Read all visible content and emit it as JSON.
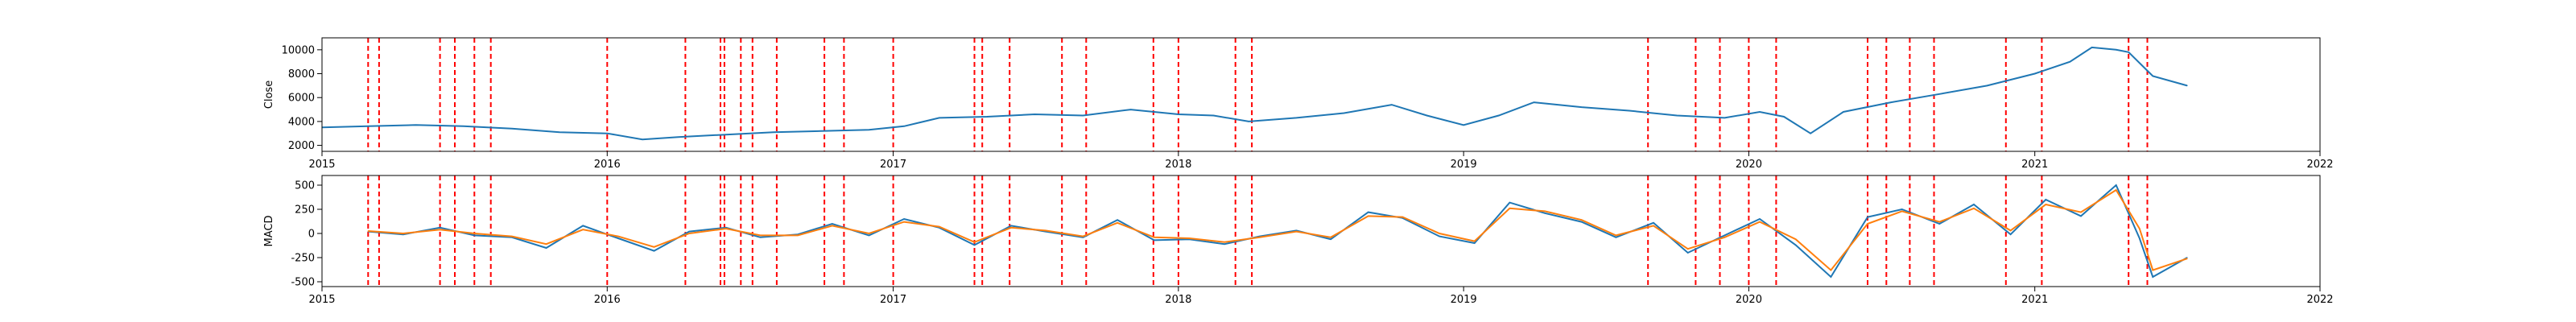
{
  "chart_data": [
    {
      "type": "line",
      "ylabel": "Close",
      "xlabel": "",
      "title": "",
      "xlim": [
        "2015-01-01",
        "2022-01-01"
      ],
      "ylim": [
        1500,
        11000
      ],
      "x_ticks": [
        "2015",
        "2016",
        "2017",
        "2018",
        "2019",
        "2020",
        "2021",
        "2022"
      ],
      "y_ticks": [
        2000,
        4000,
        6000,
        8000,
        10000
      ],
      "grid": false,
      "series": [
        {
          "color": "#1f77b4",
          "x": [
            "2015-01-01",
            "2015-03-01",
            "2015-05-01",
            "2015-07-01",
            "2015-09-01",
            "2015-11-01",
            "2016-01-01",
            "2016-02-15",
            "2016-04-01",
            "2016-06-01",
            "2016-08-01",
            "2016-10-01",
            "2016-12-01",
            "2017-01-15",
            "2017-03-01",
            "2017-05-01",
            "2017-07-01",
            "2017-09-01",
            "2017-11-01",
            "2018-01-01",
            "2018-02-15",
            "2018-04-01",
            "2018-06-01",
            "2018-08-01",
            "2018-10-01",
            "2018-11-15",
            "2019-01-01",
            "2019-02-15",
            "2019-04-01",
            "2019-06-01",
            "2019-08-01",
            "2019-10-01",
            "2019-12-01",
            "2020-01-15",
            "2020-02-15",
            "2020-03-20",
            "2020-05-01",
            "2020-07-01",
            "2020-09-01",
            "2020-11-01",
            "2021-01-01",
            "2021-02-15",
            "2021-03-15",
            "2021-04-15",
            "2021-05-01",
            "2021-06-01",
            "2021-07-15"
          ],
          "y": [
            3500,
            3600,
            3700,
            3600,
            3400,
            3100,
            3000,
            2500,
            2700,
            2900,
            3100,
            3200,
            3300,
            3600,
            4300,
            4400,
            4600,
            4500,
            5000,
            4600,
            4500,
            4000,
            4300,
            4700,
            5400,
            4500,
            3700,
            4500,
            5600,
            5200,
            4900,
            4500,
            4300,
            4800,
            4400,
            3000,
            4800,
            5600,
            6300,
            7000,
            8000,
            9000,
            10200,
            10000,
            9800,
            7800,
            7000
          ]
        }
      ],
      "vlines": [
        "2015-03-01",
        "2015-03-15",
        "2015-06-01",
        "2015-06-20",
        "2015-07-15",
        "2015-08-05",
        "2016-01-01",
        "2016-04-10",
        "2016-05-25",
        "2016-05-30",
        "2016-06-20",
        "2016-07-05",
        "2016-08-05",
        "2016-10-05",
        "2016-10-30",
        "2017-01-01",
        "2017-04-15",
        "2017-04-25",
        "2017-05-30",
        "2017-08-05",
        "2017-09-05",
        "2017-11-30",
        "2018-01-01",
        "2018-03-15",
        "2018-04-05",
        "2019-08-25",
        "2019-10-25",
        "2019-11-25",
        "2020-01-01",
        "2020-02-05",
        "2020-06-01",
        "2020-06-25",
        "2020-07-25",
        "2020-08-25",
        "2020-11-25",
        "2021-01-10",
        "2021-05-01",
        "2021-05-25"
      ]
    },
    {
      "type": "line",
      "ylabel": "MACD",
      "xlabel": "",
      "title": "",
      "xlim": [
        "2015-01-01",
        "2022-01-01"
      ],
      "ylim": [
        -550,
        600
      ],
      "x_ticks": [
        "2015",
        "2016",
        "2017",
        "2018",
        "2019",
        "2020",
        "2021",
        "2022"
      ],
      "y_ticks": [
        -500,
        -250,
        0,
        250,
        500
      ],
      "grid": false,
      "series": [
        {
          "color": "#1f77b4",
          "x": [
            "2015-03-01",
            "2015-04-15",
            "2015-06-01",
            "2015-07-15",
            "2015-09-01",
            "2015-10-15",
            "2015-12-01",
            "2016-01-15",
            "2016-03-01",
            "2016-04-15",
            "2016-06-01",
            "2016-07-15",
            "2016-09-01",
            "2016-10-15",
            "2016-12-01",
            "2017-01-15",
            "2017-03-01",
            "2017-04-15",
            "2017-06-01",
            "2017-07-15",
            "2017-09-01",
            "2017-10-15",
            "2017-12-01",
            "2018-01-15",
            "2018-03-01",
            "2018-04-15",
            "2018-06-01",
            "2018-07-15",
            "2018-09-01",
            "2018-10-15",
            "2018-12-01",
            "2019-01-15",
            "2019-03-01",
            "2019-04-15",
            "2019-06-01",
            "2019-07-15",
            "2019-09-01",
            "2019-10-15",
            "2019-12-01",
            "2020-01-15",
            "2020-03-01",
            "2020-04-15",
            "2020-06-01",
            "2020-07-15",
            "2020-09-01",
            "2020-10-15",
            "2020-12-01",
            "2021-01-15",
            "2021-03-01",
            "2021-04-15",
            "2021-05-15",
            "2021-06-01",
            "2021-07-15"
          ],
          "y": [
            20,
            -10,
            60,
            -20,
            -40,
            -150,
            80,
            -50,
            -180,
            20,
            60,
            -40,
            -10,
            100,
            -20,
            150,
            60,
            -120,
            80,
            20,
            -40,
            140,
            -70,
            -60,
            -110,
            -30,
            30,
            -60,
            220,
            160,
            -30,
            -100,
            320,
            210,
            120,
            -40,
            110,
            -200,
            -20,
            150,
            -120,
            -450,
            170,
            250,
            100,
            300,
            -10,
            350,
            180,
            500,
            -50,
            -450,
            -250
          ]
        },
        {
          "color": "#ff7f0e",
          "x": [
            "2015-03-01",
            "2015-04-15",
            "2015-06-01",
            "2015-07-15",
            "2015-09-01",
            "2015-10-15",
            "2015-12-01",
            "2016-01-15",
            "2016-03-01",
            "2016-04-15",
            "2016-06-01",
            "2016-07-15",
            "2016-09-01",
            "2016-10-15",
            "2016-12-01",
            "2017-01-15",
            "2017-03-01",
            "2017-04-15",
            "2017-06-01",
            "2017-07-15",
            "2017-09-01",
            "2017-10-15",
            "2017-12-01",
            "2018-01-15",
            "2018-03-01",
            "2018-04-15",
            "2018-06-01",
            "2018-07-15",
            "2018-09-01",
            "2018-10-15",
            "2018-12-01",
            "2019-01-15",
            "2019-03-01",
            "2019-04-15",
            "2019-06-01",
            "2019-07-15",
            "2019-09-01",
            "2019-10-15",
            "2019-12-01",
            "2020-01-15",
            "2020-03-01",
            "2020-04-15",
            "2020-06-01",
            "2020-07-15",
            "2020-09-01",
            "2020-10-15",
            "2020-12-01",
            "2021-01-15",
            "2021-03-01",
            "2021-04-15",
            "2021-05-15",
            "2021-06-01",
            "2021-07-15"
          ],
          "y": [
            25,
            0,
            40,
            0,
            -30,
            -110,
            40,
            -30,
            -140,
            0,
            50,
            -20,
            -20,
            80,
            0,
            120,
            70,
            -90,
            60,
            30,
            -30,
            110,
            -40,
            -50,
            -90,
            -40,
            20,
            -40,
            180,
            170,
            0,
            -80,
            260,
            230,
            140,
            -20,
            80,
            -160,
            -40,
            120,
            -60,
            -380,
            100,
            230,
            120,
            260,
            30,
            300,
            220,
            450,
            50,
            -380,
            -260
          ]
        }
      ],
      "vlines": [
        "2015-03-01",
        "2015-03-15",
        "2015-06-01",
        "2015-06-20",
        "2015-07-15",
        "2015-08-05",
        "2016-01-01",
        "2016-04-10",
        "2016-05-25",
        "2016-05-30",
        "2016-06-20",
        "2016-07-05",
        "2016-08-05",
        "2016-10-05",
        "2016-10-30",
        "2017-01-01",
        "2017-04-15",
        "2017-04-25",
        "2017-05-30",
        "2017-08-05",
        "2017-09-05",
        "2017-11-30",
        "2018-01-01",
        "2018-03-15",
        "2018-04-05",
        "2019-08-25",
        "2019-10-25",
        "2019-11-25",
        "2020-01-01",
        "2020-02-05",
        "2020-06-01",
        "2020-06-25",
        "2020-07-25",
        "2020-08-25",
        "2020-11-25",
        "2021-01-10",
        "2021-05-01",
        "2021-05-25"
      ]
    }
  ]
}
